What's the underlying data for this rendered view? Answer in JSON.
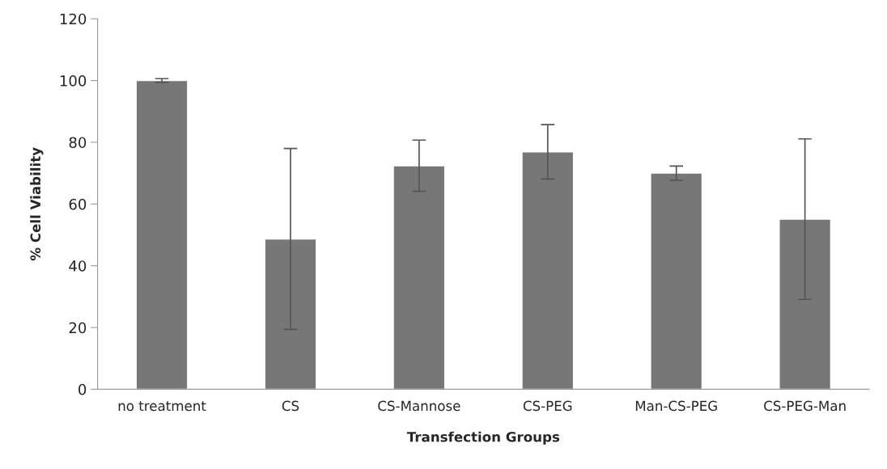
{
  "chart_data": {
    "type": "bar",
    "xlabel": "Transfection Groups",
    "ylabel": "% Cell Viability",
    "categories": [
      "no treatment",
      "CS",
      "CS-Mannose",
      "CS-PEG",
      "Man-CS-PEG",
      "CS-PEG-Man"
    ],
    "values": [
      100,
      48.7,
      72.4,
      76.9,
      70.0,
      55.1
    ],
    "errors": [
      0.6,
      29.3,
      8.3,
      8.8,
      2.3,
      26.0
    ],
    "color": "#777777",
    "ylim": [
      0,
      120
    ],
    "yticks": [
      0,
      20,
      40,
      60,
      80,
      100,
      120
    ],
    "grid": false,
    "legend": false
  }
}
